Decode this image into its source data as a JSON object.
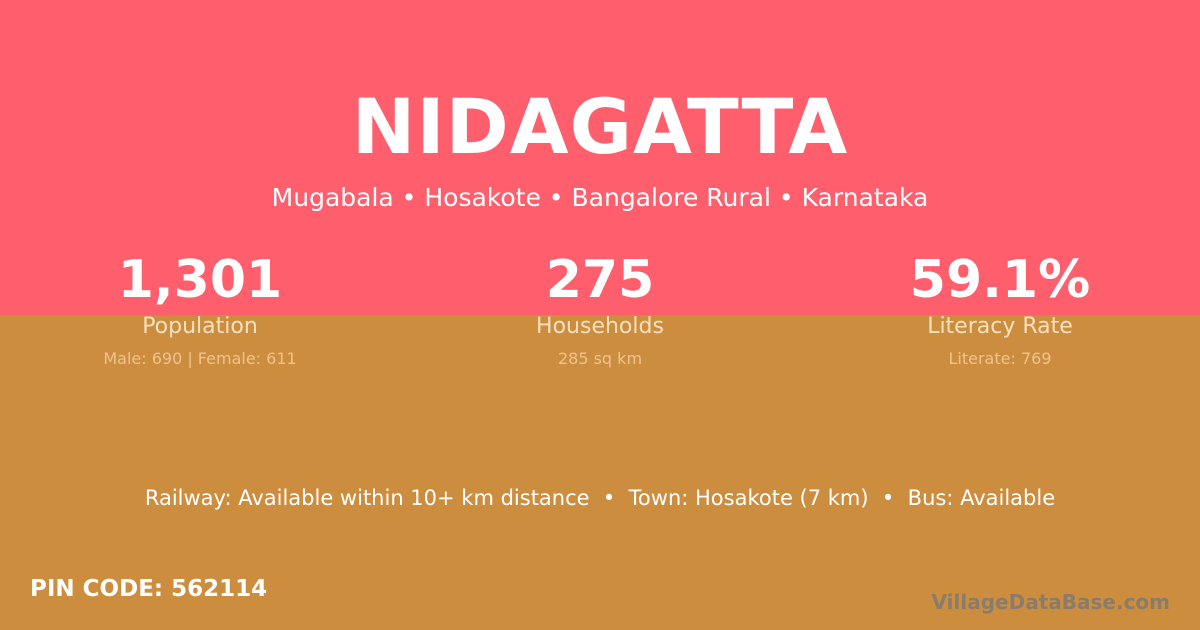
{
  "colors": {
    "top_bg": "#ff5e6c",
    "bottom_bg": "#cc8e3e"
  },
  "title": "NIDAGATTA",
  "subtitle": "Mugabala • Hosakote • Bangalore Rural • Karnataka",
  "stats": [
    {
      "value": "1,301",
      "label": "Population",
      "detail": "Male: 690 | Female: 611"
    },
    {
      "value": "275",
      "label": "Households",
      "detail": "285 sq km"
    },
    {
      "value": "59.1%",
      "label": "Literacy Rate",
      "detail": "Literate: 769"
    }
  ],
  "info": "Railway: Available within 10+ km distance  •  Town: Hosakote (7 km)  •  Bus: Available",
  "pin": "PIN CODE: 562114",
  "brand": "VillageDataBase.com"
}
